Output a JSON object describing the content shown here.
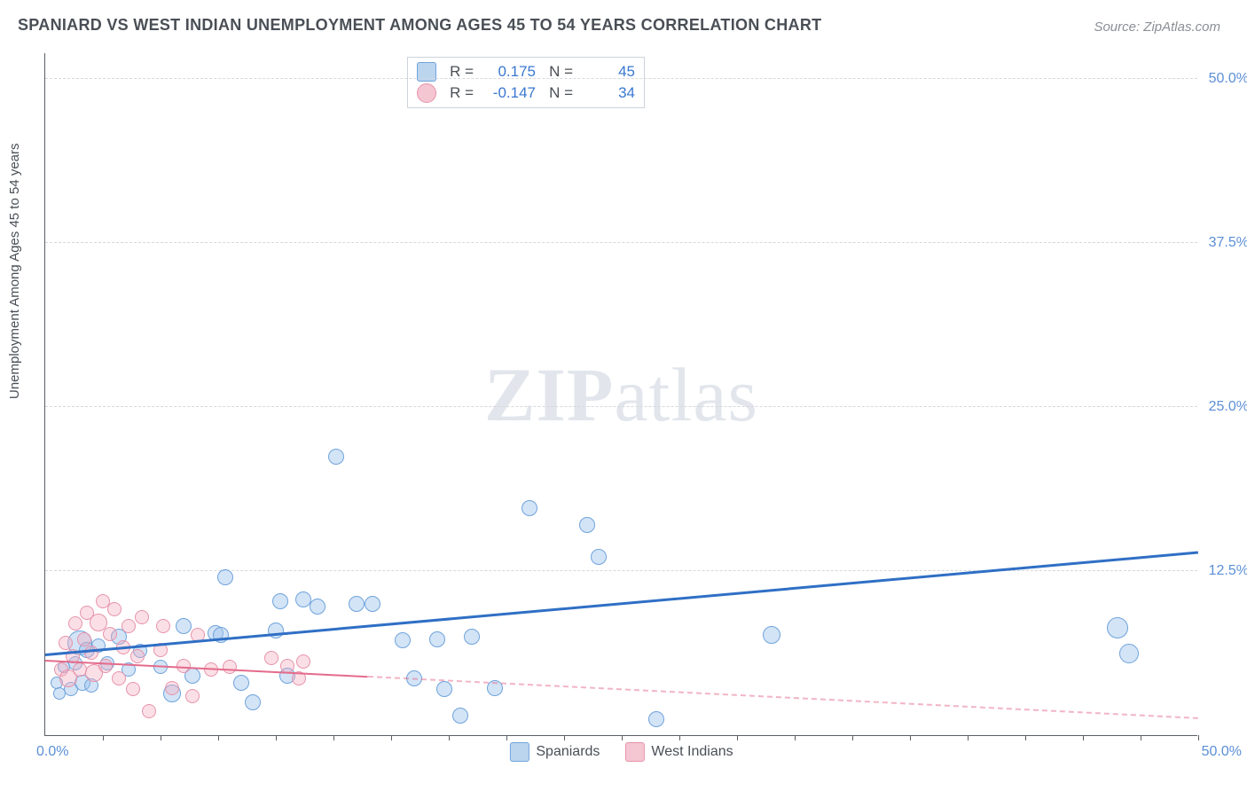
{
  "title": "SPANIARD VS WEST INDIAN UNEMPLOYMENT AMONG AGES 45 TO 54 YEARS CORRELATION CHART",
  "source": "Source: ZipAtlas.com",
  "ylabel": "Unemployment Among Ages 45 to 54 years",
  "watermark_part1": "ZIP",
  "watermark_part2": "atlas",
  "chart": {
    "type": "scatter",
    "xlim": [
      0,
      50
    ],
    "ylim": [
      0,
      52
    ],
    "x_axis_left_label": "0.0%",
    "x_axis_right_label": "50.0%",
    "xtick_positions_pct": [
      2.5,
      5,
      7.5,
      10,
      12.5,
      15,
      17.5,
      20,
      22.5,
      25,
      27.5,
      30,
      32.5,
      35,
      37.5,
      40,
      42.5,
      45,
      47.5,
      50
    ],
    "y_gridlines": [
      {
        "value": 12.5,
        "label": "12.5%"
      },
      {
        "value": 25.0,
        "label": "25.0%"
      },
      {
        "value": 37.5,
        "label": "37.5%"
      },
      {
        "value": 50.0,
        "label": "50.0%"
      }
    ],
    "background_color": "#ffffff",
    "grid_color": "#d5d8dc",
    "axis_color": "#5a5f66",
    "tick_label_color": "#5b8fd6",
    "series": [
      {
        "name": "Spaniards",
        "fill_color": "rgba(157, 195, 238, 0.45)",
        "stroke_color": "#6fa3db",
        "legend_swatch_fill": "#bcd5ef",
        "legend_swatch_stroke": "#6fa3db",
        "trend": {
          "color": "#2f6fc5",
          "width": 3,
          "dash": "solid",
          "y_at_x0": 6.0,
          "y_at_xmax": 13.8,
          "dash_after_x": null
        },
        "stats": {
          "R_label": "R =",
          "R": "0.175",
          "N_label": "N =",
          "N": "45",
          "value_color": "#3a78d0"
        },
        "base_radius": 9,
        "points": [
          {
            "x": 0.5,
            "y": 4.0,
            "r": 7
          },
          {
            "x": 0.6,
            "y": 3.2,
            "r": 7
          },
          {
            "x": 0.8,
            "y": 5.2,
            "r": 7
          },
          {
            "x": 1.1,
            "y": 3.5,
            "r": 8
          },
          {
            "x": 1.3,
            "y": 5.5,
            "r": 8
          },
          {
            "x": 1.5,
            "y": 7.0,
            "r": 14
          },
          {
            "x": 1.6,
            "y": 4.0,
            "r": 9
          },
          {
            "x": 1.8,
            "y": 6.5,
            "r": 9
          },
          {
            "x": 2.0,
            "y": 3.8,
            "r": 8
          },
          {
            "x": 2.3,
            "y": 6.8,
            "r": 8
          },
          {
            "x": 2.7,
            "y": 5.5,
            "r": 8
          },
          {
            "x": 3.2,
            "y": 7.5,
            "r": 9
          },
          {
            "x": 3.6,
            "y": 5.0,
            "r": 8
          },
          {
            "x": 4.1,
            "y": 6.4,
            "r": 8
          },
          {
            "x": 5.0,
            "y": 5.2,
            "r": 8
          },
          {
            "x": 5.5,
            "y": 3.2,
            "r": 10
          },
          {
            "x": 6.0,
            "y": 8.3,
            "r": 9
          },
          {
            "x": 6.4,
            "y": 4.5,
            "r": 9
          },
          {
            "x": 7.4,
            "y": 7.8,
            "r": 9
          },
          {
            "x": 7.6,
            "y": 7.6,
            "r": 9
          },
          {
            "x": 7.8,
            "y": 12.0,
            "r": 9
          },
          {
            "x": 8.5,
            "y": 4.0,
            "r": 9
          },
          {
            "x": 9.0,
            "y": 2.5,
            "r": 9
          },
          {
            "x": 10.0,
            "y": 8.0,
            "r": 9
          },
          {
            "x": 10.2,
            "y": 10.2,
            "r": 9
          },
          {
            "x": 10.5,
            "y": 4.5,
            "r": 9
          },
          {
            "x": 11.2,
            "y": 10.3,
            "r": 9
          },
          {
            "x": 11.8,
            "y": 9.8,
            "r": 9
          },
          {
            "x": 12.6,
            "y": 21.2,
            "r": 9
          },
          {
            "x": 13.5,
            "y": 10.0,
            "r": 9
          },
          {
            "x": 14.2,
            "y": 10.0,
            "r": 9
          },
          {
            "x": 15.5,
            "y": 7.2,
            "r": 9
          },
          {
            "x": 16.0,
            "y": 4.3,
            "r": 9
          },
          {
            "x": 17.0,
            "y": 7.3,
            "r": 9
          },
          {
            "x": 17.3,
            "y": 3.5,
            "r": 9
          },
          {
            "x": 18.0,
            "y": 1.5,
            "r": 9
          },
          {
            "x": 18.5,
            "y": 7.5,
            "r": 9
          },
          {
            "x": 19.5,
            "y": 3.6,
            "r": 9
          },
          {
            "x": 21.0,
            "y": 17.3,
            "r": 9
          },
          {
            "x": 23.5,
            "y": 16.0,
            "r": 9
          },
          {
            "x": 24.0,
            "y": 13.6,
            "r": 9
          },
          {
            "x": 26.5,
            "y": 1.2,
            "r": 9
          },
          {
            "x": 31.5,
            "y": 7.6,
            "r": 10
          },
          {
            "x": 46.5,
            "y": 8.2,
            "r": 12
          },
          {
            "x": 47.0,
            "y": 6.2,
            "r": 11
          }
        ]
      },
      {
        "name": "West Indians",
        "fill_color": "rgba(245, 170, 190, 0.38)",
        "stroke_color": "#e793aa",
        "legend_swatch_fill": "#f4c6d2",
        "legend_swatch_stroke": "#e793aa",
        "trend": {
          "color": "#e46b8b",
          "width": 2,
          "dash": "solid",
          "y_at_x0": 5.6,
          "y_at_xmax": 1.2,
          "dash_after_x": 14
        },
        "stats": {
          "R_label": "R =",
          "R": "-0.147",
          "N_label": "N =",
          "N": "34",
          "value_color": "#3a78d0"
        },
        "base_radius": 9,
        "points": [
          {
            "x": 0.7,
            "y": 5.0,
            "r": 8
          },
          {
            "x": 0.9,
            "y": 7.0,
            "r": 8
          },
          {
            "x": 1.0,
            "y": 4.3,
            "r": 10
          },
          {
            "x": 1.2,
            "y": 6.0,
            "r": 8
          },
          {
            "x": 1.3,
            "y": 8.5,
            "r": 8
          },
          {
            "x": 1.5,
            "y": 5.0,
            "r": 8
          },
          {
            "x": 1.7,
            "y": 7.3,
            "r": 8
          },
          {
            "x": 1.8,
            "y": 9.3,
            "r": 8
          },
          {
            "x": 2.0,
            "y": 6.3,
            "r": 8
          },
          {
            "x": 2.1,
            "y": 4.7,
            "r": 10
          },
          {
            "x": 2.3,
            "y": 8.6,
            "r": 10
          },
          {
            "x": 2.5,
            "y": 10.2,
            "r": 8
          },
          {
            "x": 2.6,
            "y": 5.3,
            "r": 8
          },
          {
            "x": 2.8,
            "y": 7.7,
            "r": 8
          },
          {
            "x": 3.0,
            "y": 9.6,
            "r": 8
          },
          {
            "x": 3.2,
            "y": 4.3,
            "r": 8
          },
          {
            "x": 3.4,
            "y": 6.7,
            "r": 8
          },
          {
            "x": 3.6,
            "y": 8.3,
            "r": 8
          },
          {
            "x": 3.8,
            "y": 3.5,
            "r": 8
          },
          {
            "x": 4.0,
            "y": 6.0,
            "r": 8
          },
          {
            "x": 4.2,
            "y": 9.0,
            "r": 8
          },
          {
            "x": 4.5,
            "y": 1.8,
            "r": 8
          },
          {
            "x": 5.0,
            "y": 6.5,
            "r": 8
          },
          {
            "x": 5.1,
            "y": 8.3,
            "r": 8
          },
          {
            "x": 5.5,
            "y": 3.6,
            "r": 8
          },
          {
            "x": 6.0,
            "y": 5.3,
            "r": 8
          },
          {
            "x": 6.6,
            "y": 7.6,
            "r": 8
          },
          {
            "x": 6.4,
            "y": 3.0,
            "r": 8
          },
          {
            "x": 7.2,
            "y": 5.0,
            "r": 8
          },
          {
            "x": 8.0,
            "y": 5.2,
            "r": 8
          },
          {
            "x": 9.8,
            "y": 5.9,
            "r": 8
          },
          {
            "x": 10.5,
            "y": 5.3,
            "r": 8
          },
          {
            "x": 11.0,
            "y": 4.3,
            "r": 8
          },
          {
            "x": 11.2,
            "y": 5.6,
            "r": 8
          }
        ]
      }
    ],
    "legend_bottom": [
      {
        "label": "Spaniards",
        "fill": "#bcd5ef",
        "stroke": "#6fa3db"
      },
      {
        "label": "West Indians",
        "fill": "#f4c6d2",
        "stroke": "#e793aa"
      }
    ]
  }
}
